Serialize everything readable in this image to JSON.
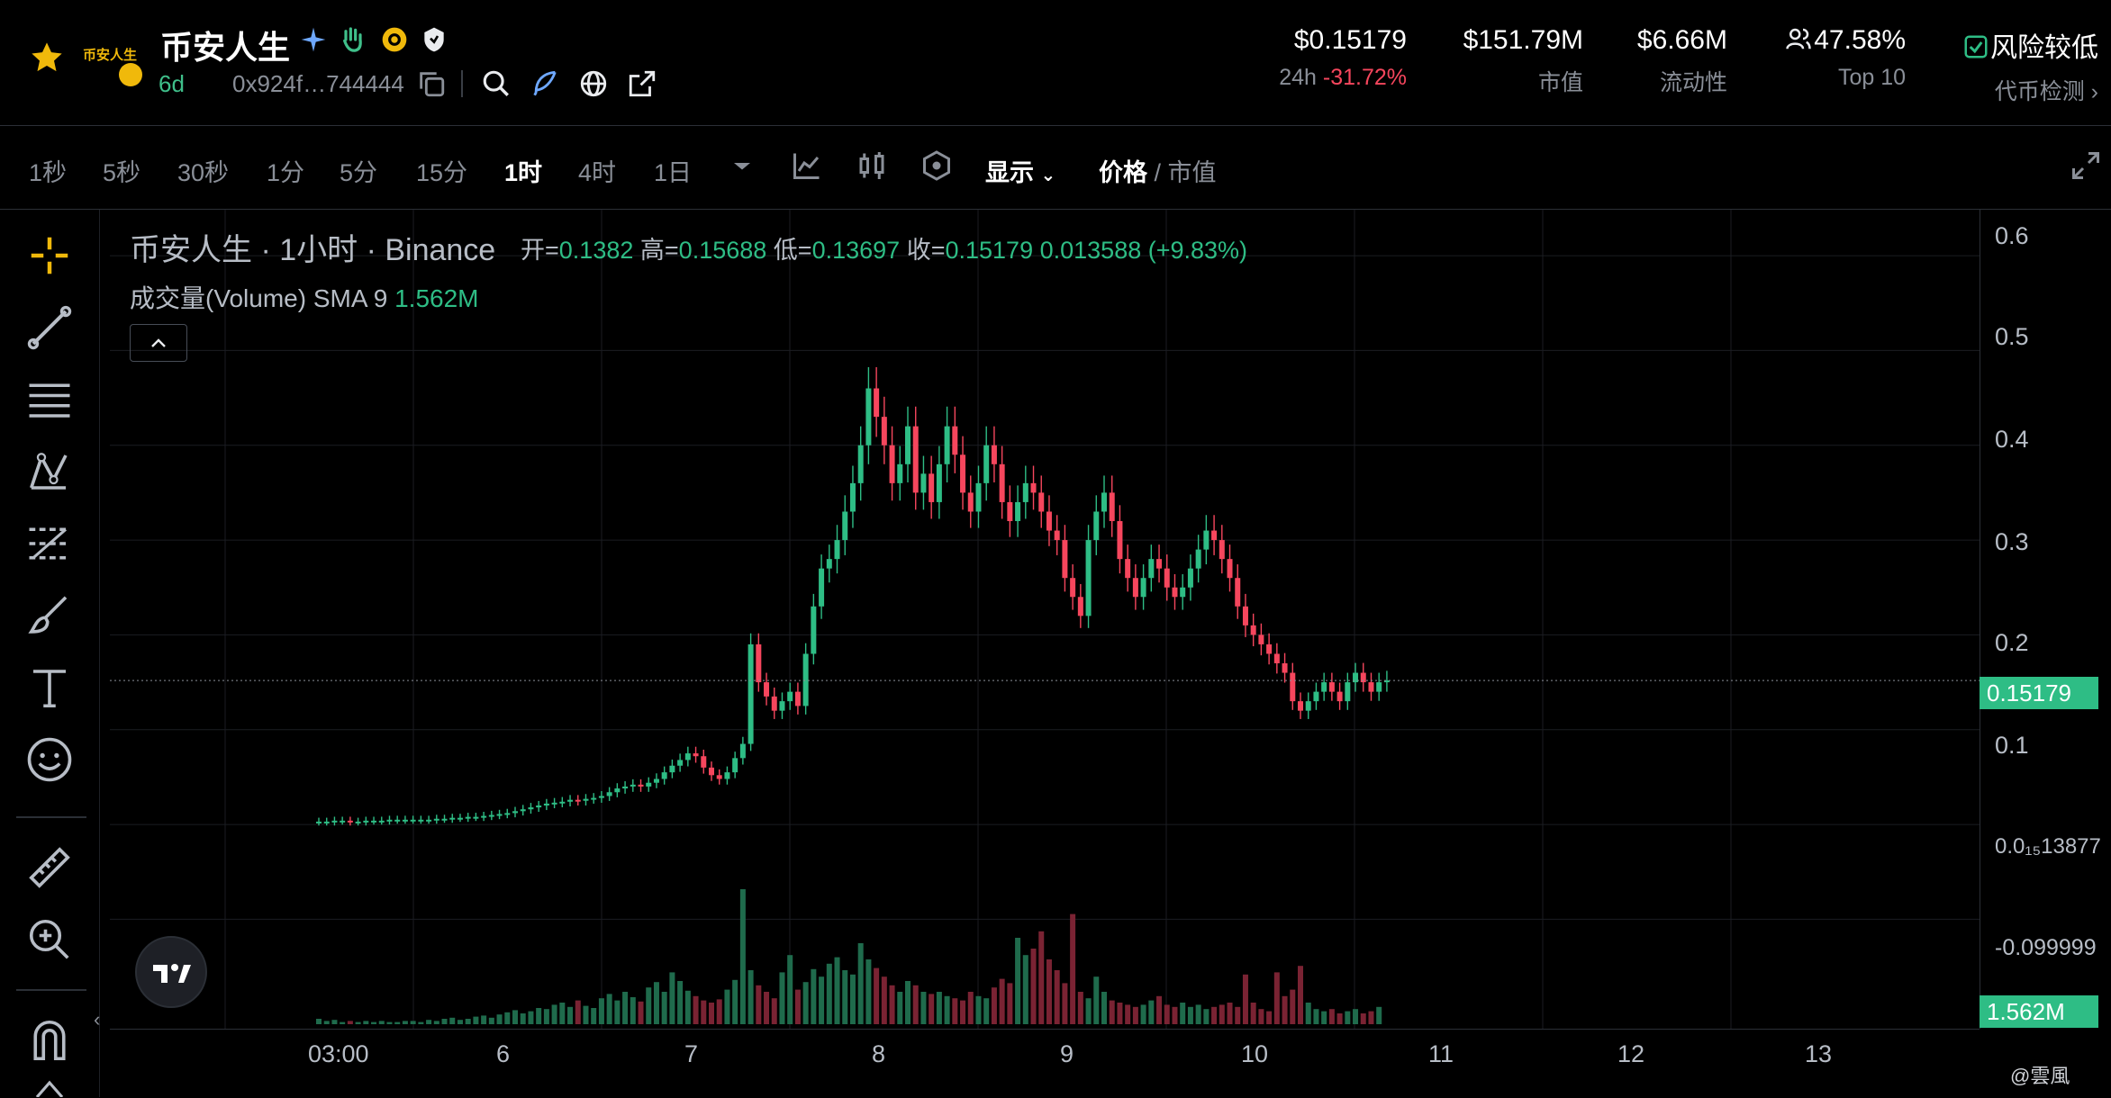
{
  "header": {
    "token_name": "币安人生",
    "logo_text": "币安人生",
    "age": "6d",
    "address": "0x924f…744444",
    "stats": [
      {
        "value": "$0.15179",
        "label_prefix": "24h",
        "label": "-31.72%"
      },
      {
        "value": "$151.79M",
        "label": "市值"
      },
      {
        "value": "$6.66M",
        "label": "流动性"
      },
      {
        "value": "47.58%",
        "label": "Top 10"
      }
    ],
    "risk_label": "风险较低",
    "risk_link": "代币检测",
    "colors": {
      "up": "#2ebd85",
      "down": "#f6465d",
      "accent": "#f0b90b"
    }
  },
  "toolbar": {
    "timeframes": [
      "1秒",
      "5秒",
      "30秒",
      "1分",
      "5分",
      "15分",
      "1时",
      "4时",
      "1日"
    ],
    "active_timeframe": "1时",
    "display_label": "显示",
    "price_label": "价格",
    "mcap_label": "市值"
  },
  "legend": {
    "title": "币安人生 · 1小时 · Binance",
    "open_label": "开=",
    "open": "0.1382",
    "high_label": "高=",
    "high": "0.15688",
    "low_label": "低=",
    "low": "0.13697",
    "close_label": "收=",
    "close": "0.15179",
    "change": "0.013588 (+9.83%)",
    "volume_label": "成交量(Volume) SMA 9",
    "volume_value": "1.562M"
  },
  "price_axis": {
    "ticks": [
      "0.6",
      "0.5",
      "0.4",
      "0.3",
      "0.2",
      "0.1",
      "0.0₁₅13877",
      "-0.099999"
    ],
    "current_price": "0.15179",
    "current_volume": "1.562M"
  },
  "time_axis": {
    "ticks": [
      "03:00",
      "6",
      "7",
      "8",
      "9",
      "10",
      "11",
      "12",
      "13"
    ]
  },
  "watermark": "@雲風",
  "chart_data": {
    "type": "candlestick",
    "title": "币安人生 · 1小时 · Binance",
    "ylim": [
      -0.13,
      0.62
    ],
    "x_start": "5 03:00",
    "x_end": "12 00:00",
    "interval": "1h",
    "current_price": 0.15179,
    "price_series": [
      0.003,
      0.003,
      0.004,
      0.004,
      0.003,
      0.003,
      0.004,
      0.004,
      0.004,
      0.005,
      0.005,
      0.005,
      0.005,
      0.005,
      0.005,
      0.006,
      0.006,
      0.007,
      0.007,
      0.008,
      0.008,
      0.009,
      0.01,
      0.011,
      0.012,
      0.014,
      0.016,
      0.018,
      0.02,
      0.022,
      0.023,
      0.024,
      0.026,
      0.025,
      0.027,
      0.028,
      0.03,
      0.034,
      0.038,
      0.04,
      0.042,
      0.04,
      0.044,
      0.048,
      0.055,
      0.062,
      0.068,
      0.075,
      0.072,
      0.06,
      0.052,
      0.048,
      0.055,
      0.07,
      0.085,
      0.19,
      0.15,
      0.135,
      0.12,
      0.13,
      0.14,
      0.125,
      0.18,
      0.23,
      0.27,
      0.28,
      0.3,
      0.33,
      0.36,
      0.4,
      0.46,
      0.43,
      0.4,
      0.36,
      0.38,
      0.42,
      0.35,
      0.37,
      0.34,
      0.38,
      0.42,
      0.39,
      0.35,
      0.33,
      0.36,
      0.4,
      0.38,
      0.34,
      0.32,
      0.34,
      0.36,
      0.35,
      0.33,
      0.31,
      0.3,
      0.26,
      0.24,
      0.22,
      0.3,
      0.33,
      0.35,
      0.32,
      0.28,
      0.26,
      0.24,
      0.26,
      0.28,
      0.27,
      0.25,
      0.24,
      0.25,
      0.27,
      0.29,
      0.31,
      0.3,
      0.28,
      0.26,
      0.23,
      0.21,
      0.2,
      0.19,
      0.18,
      0.17,
      0.16,
      0.13,
      0.12,
      0.13,
      0.14,
      0.15,
      0.14,
      0.13,
      0.15,
      0.16,
      0.15,
      0.14,
      0.15,
      0.152
    ],
    "volume_series": [
      0.5,
      0.3,
      0.4,
      0.2,
      0.3,
      0.2,
      0.3,
      0.2,
      0.3,
      0.2,
      0.2,
      0.3,
      0.3,
      0.2,
      0.4,
      0.3,
      0.5,
      0.6,
      0.4,
      0.5,
      0.7,
      0.8,
      0.6,
      0.9,
      1.1,
      1.3,
      1.0,
      1.2,
      1.5,
      1.4,
      1.8,
      2.0,
      1.6,
      2.2,
      1.7,
      1.5,
      2.4,
      2.8,
      2.2,
      3.0,
      2.5,
      2.1,
      3.4,
      3.9,
      3.0,
      4.8,
      4.0,
      3.1,
      2.6,
      2.2,
      2.0,
      2.3,
      3.2,
      4.1,
      12.5,
      5.0,
      3.6,
      3.0,
      2.4,
      4.8,
      6.4,
      3.2,
      3.9,
      5.1,
      4.4,
      5.6,
      6.2,
      5.0,
      4.6,
      7.5,
      6.0,
      5.2,
      4.4,
      3.6,
      3.0,
      4.0,
      3.6,
      3.0,
      2.8,
      3.0,
      2.6,
      2.4,
      2.2,
      3.0,
      2.6,
      2.4,
      3.4,
      4.2,
      3.8,
      8.0,
      6.4,
      7.0,
      8.6,
      6.0,
      5.0,
      3.8,
      10.2,
      3.0,
      2.4,
      4.4,
      3.0,
      2.2,
      2.0,
      1.8,
      1.6,
      1.8,
      2.2,
      2.6,
      1.8,
      1.6,
      2.0,
      1.6,
      1.8,
      1.4,
      1.6,
      1.8,
      2.0,
      1.6,
      4.6,
      2.0,
      1.4,
      1.2,
      4.8,
      2.6,
      3.2,
      5.4,
      2.0,
      1.4,
      1.2,
      1.4,
      1.0,
      1.2,
      1.4,
      1.0,
      1.2,
      1.6
    ]
  }
}
